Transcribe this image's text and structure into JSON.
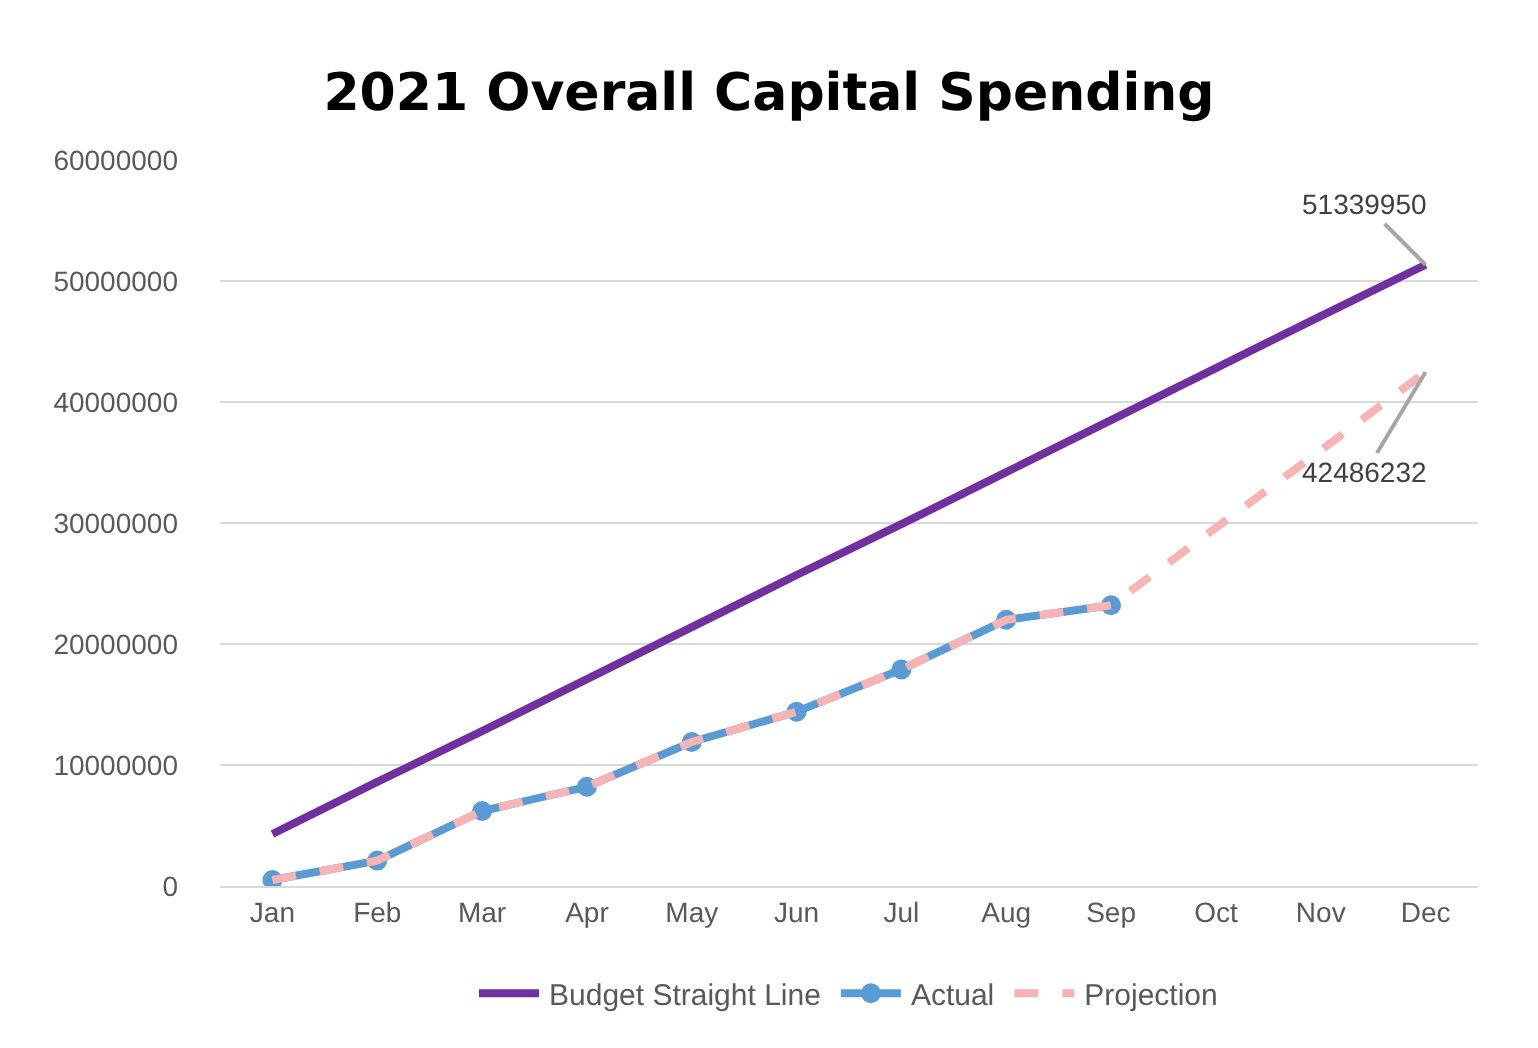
{
  "chart_data": {
    "type": "line",
    "title": "2021 Overall Capital Spending",
    "categories": [
      "Jan",
      "Feb",
      "Mar",
      "Apr",
      "May",
      "Jun",
      "Jul",
      "Aug",
      "Sep",
      "Oct",
      "Nov",
      "Dec"
    ],
    "series": [
      {
        "name": "Budget Straight Line",
        "color": "#7030a0",
        "line_style": "solid",
        "marker": "none",
        "values": [
          4300000,
          8600000,
          12800000,
          17100000,
          21400000,
          25700000,
          29900000,
          34200000,
          38500000,
          42800000,
          47100000,
          51339950
        ]
      },
      {
        "name": "Actual",
        "color": "#5b9bd5",
        "line_style": "solid",
        "marker": "circle",
        "values": [
          500000,
          2100000,
          6200000,
          8200000,
          11900000,
          14400000,
          17900000,
          22000000,
          23200000,
          null,
          null,
          null
        ]
      },
      {
        "name": "Projection",
        "color": "#f8b4b4",
        "line_style": "dashed",
        "marker": "none",
        "values": [
          500000,
          2100000,
          6200000,
          8200000,
          11900000,
          14400000,
          17900000,
          22000000,
          23200000,
          29600000,
          36000000,
          42486232
        ]
      }
    ],
    "ylim": [
      0,
      60000000
    ],
    "yticks": [
      0,
      10000000,
      20000000,
      30000000,
      40000000,
      50000000,
      60000000
    ],
    "grid": "y",
    "legend": "bottom",
    "annotations": [
      {
        "text": "51339950",
        "x": "Dec",
        "y": 51339950
      },
      {
        "text": "42486232",
        "x": "Dec",
        "y": 42486232
      }
    ]
  }
}
